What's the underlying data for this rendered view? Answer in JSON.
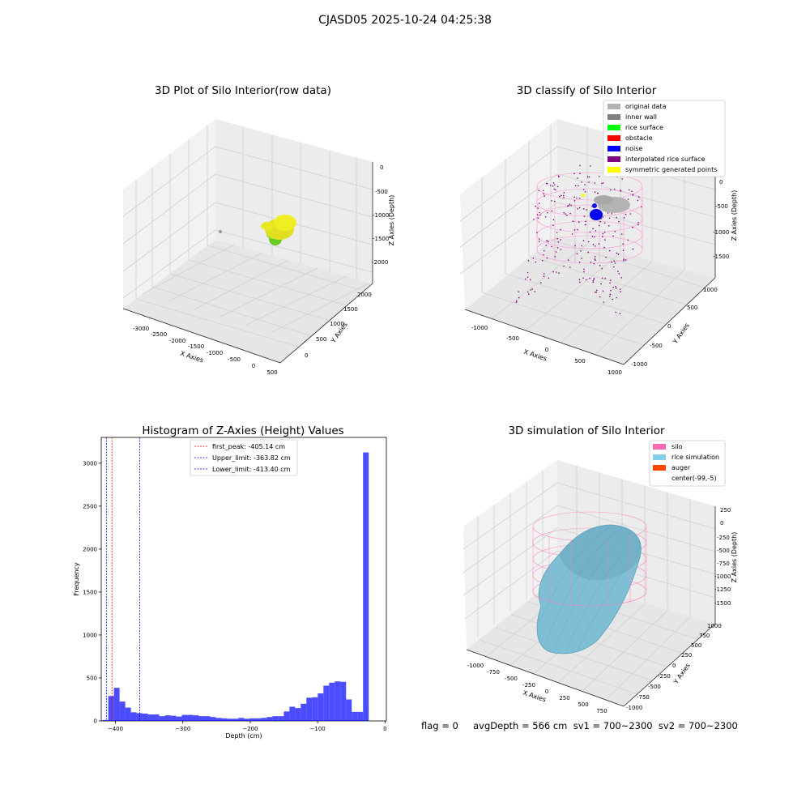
{
  "suptitle": "CJASD05 2025-10-24 04:25:38",
  "panels": {
    "raw": {
      "title": "3D Plot of Silo Interior(row data)",
      "xlabel": "X Axies",
      "ylabel": "Y Axies",
      "zlabel": "Z Axies (Depth)",
      "xticks": [
        "-3000",
        "-2500",
        "-2000",
        "-1500",
        "-1000",
        "-500",
        "0",
        "500"
      ],
      "yticks": [
        "0",
        "500",
        "1000",
        "1500",
        "2000"
      ],
      "zticks": [
        "0",
        "-500",
        "-1000",
        "-1500",
        "-2000"
      ]
    },
    "classify": {
      "title": "3D classify of Silo Interior",
      "xlabel": "X Axies",
      "ylabel": "Y Axies",
      "zlabel": "Z Axies (Depth)",
      "xticks": [
        "-1000",
        "-500",
        "0",
        "500",
        "1000"
      ],
      "yticks": [
        "-1000",
        "-500",
        "0",
        "500",
        "1000"
      ],
      "zticks": [
        "0",
        "-500",
        "-1000",
        "-1500"
      ],
      "legend": [
        {
          "label": "original data",
          "color": "#b3b3b3"
        },
        {
          "label": "inner wall",
          "color": "#808080"
        },
        {
          "label": "rice surface",
          "color": "#00ff00"
        },
        {
          "label": "obstacle",
          "color": "#ff0000"
        },
        {
          "label": "noise",
          "color": "#0000ff"
        },
        {
          "label": "interpolated rice surface",
          "color": "#800080"
        },
        {
          "label": "symmetric generated points",
          "color": "#ffff00"
        }
      ]
    },
    "simulation": {
      "title": "3D simulation of Silo Interior",
      "xlabel": "X Axies",
      "ylabel": "Y Axies",
      "zlabel": "Z Axies (Depth)",
      "xticks": [
        "-1000",
        "-750",
        "-500",
        "-250",
        "0",
        "250",
        "500",
        "750"
      ],
      "yticks": [
        "-1000",
        "-750",
        "-500",
        "-250",
        "0",
        "250",
        "500",
        "750",
        "1000"
      ],
      "zticks": [
        "250",
        "0",
        "-250",
        "-500",
        "-750",
        "-1000",
        "-1250",
        "-1500"
      ],
      "legend": [
        {
          "label": "silo",
          "color": "#ff69b4"
        },
        {
          "label": "rice simulation",
          "color": "#87ceeb"
        },
        {
          "label": "auger",
          "color": "#ff4500"
        },
        {
          "label": "center(-99,-5)",
          "color": "#ffffff"
        }
      ]
    }
  },
  "footer": "flag = 0     avgDepth = 566 cm  sv1 = 700~2300  sv2 = 700~2300",
  "chart_data": {
    "type": "bar",
    "title": "Histogram of Z-Axies (Height) Values",
    "xlabel": "Depth (cm)",
    "ylabel": "Frequency",
    "xlim": [
      -421,
      2
    ],
    "ylim": [
      0,
      3300
    ],
    "xticks": [
      -400,
      -300,
      -200,
      -100,
      0
    ],
    "yticks": [
      0,
      500,
      1000,
      1500,
      2000,
      2500,
      3000
    ],
    "bin_start": -419,
    "bin_width": 8.4,
    "values": [
      10,
      290,
      385,
      225,
      155,
      100,
      90,
      85,
      75,
      75,
      55,
      65,
      60,
      50,
      70,
      70,
      65,
      55,
      55,
      45,
      35,
      30,
      25,
      25,
      35,
      25,
      30,
      30,
      35,
      45,
      55,
      55,
      110,
      165,
      150,
      200,
      270,
      275,
      320,
      410,
      445,
      460,
      455,
      250,
      105,
      105,
      3125
    ],
    "color": "#0000ff",
    "lines": [
      {
        "label": "first_peak: -405.14 cm",
        "x": -405.14,
        "color": "#ff0000"
      },
      {
        "label": "Upper_limit: -363.82 cm",
        "x": -363.82,
        "color": "#0000ff"
      },
      {
        "label": "Lower_limit: -413.40 cm",
        "x": -413.4,
        "color": "#0000ff"
      }
    ]
  }
}
